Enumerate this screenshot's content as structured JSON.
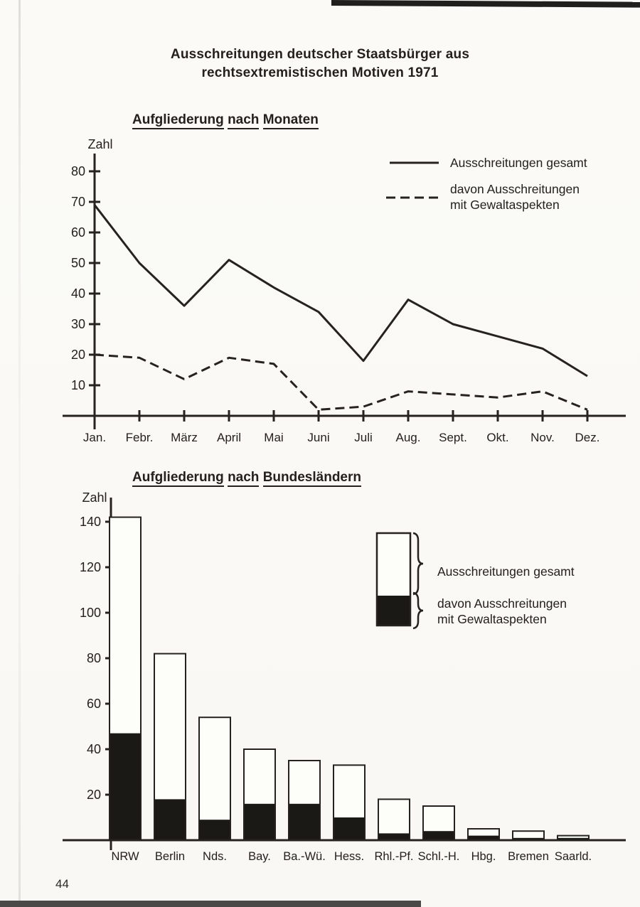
{
  "page": {
    "title_line1": "Ausschreitungen deutscher Staatsbürger aus",
    "title_line2": "rechtsextremistischen Motiven 1971",
    "number": "44"
  },
  "colors": {
    "ink": "#26231f",
    "paper": "#fbfaf7",
    "bar_white": "#fdfdfa",
    "bar_black": "#1b1916"
  },
  "chart_data": [
    {
      "type": "line",
      "title": "Aufgliederung nach Monaten",
      "ylabel": "Zahl",
      "x": [
        "Jan.",
        "Febr.",
        "März",
        "April",
        "Mai",
        "Juni",
        "Juli",
        "Aug.",
        "Sept.",
        "Okt.",
        "Nov.",
        "Dez."
      ],
      "yticks": [
        10,
        20,
        30,
        40,
        50,
        60,
        70,
        80
      ],
      "ylim": [
        0,
        85
      ],
      "grid": false,
      "legend_position": "top-right",
      "series": [
        {
          "name": "Ausschreitungen gesamt",
          "style": "solid",
          "values": [
            69,
            50,
            36,
            51,
            42,
            34,
            18,
            38,
            30,
            26,
            22,
            13
          ]
        },
        {
          "name": "davon Ausschreitungen mit Gewaltaspekten",
          "style": "dashed",
          "values": [
            20,
            19,
            12,
            19,
            17,
            2,
            3,
            8,
            7,
            6,
            8,
            2
          ]
        }
      ],
      "legend": [
        {
          "style": "solid",
          "lines": [
            "Ausschreitungen gesamt"
          ]
        },
        {
          "style": "dashed",
          "lines": [
            "davon Ausschreitungen",
            "mit Gewaltaspekten"
          ]
        }
      ]
    },
    {
      "type": "bar",
      "title": "Aufgliederung nach Bundesländern",
      "ylabel": "Zahl",
      "categories": [
        "NRW",
        "Berlin",
        "Nds.",
        "Bay.",
        "Ba.-Wü.",
        "Hess.",
        "Rhl.-Pf.",
        "Schl.-H.",
        "Hbg.",
        "Bremen",
        "Saarld."
      ],
      "yticks": [
        20,
        40,
        60,
        80,
        100,
        120,
        140
      ],
      "ylim": [
        0,
        150
      ],
      "grid": false,
      "legend_position": "top-right",
      "series": [
        {
          "name": "Ausschreitungen gesamt",
          "values": [
            142,
            82,
            54,
            40,
            35,
            33,
            18,
            15,
            5,
            4,
            2
          ]
        },
        {
          "name": "davon Ausschreitungen mit Gewaltaspekten",
          "values": [
            47,
            18,
            9,
            16,
            16,
            10,
            3,
            4,
            2,
            1,
            1
          ]
        }
      ],
      "legend": [
        {
          "swatch": "white",
          "lines": [
            "Ausschreitungen gesamt"
          ]
        },
        {
          "swatch": "black",
          "lines": [
            "davon Ausschreitungen",
            "mit Gewaltaspekten"
          ]
        }
      ]
    }
  ]
}
